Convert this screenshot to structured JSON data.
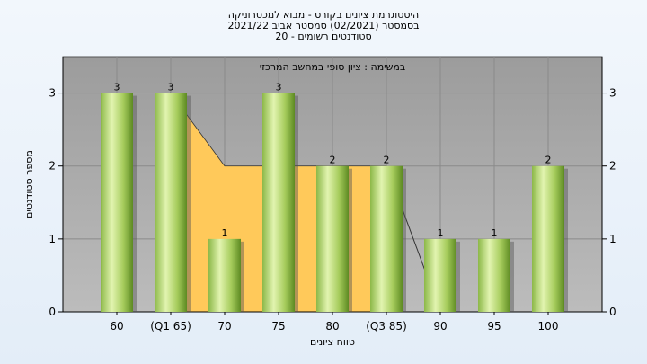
{
  "header": {
    "title_line1": "היסטוגרמת ציונים בקורס - מבוא למכטרוניקה",
    "title_line2": "בסמסטר  (02/2021)  סמסטר אביב 2021/22",
    "title_line3": "סטודנטים רשומים - 20"
  },
  "colors": {
    "plot_bg": "#a8a8a8",
    "bar_light": "#d4ec9a",
    "bar_dark": "#6e9a2a",
    "area_fill": "#ffc95a",
    "page_bg": "#e8f0f8"
  },
  "chart_data": {
    "type": "bar",
    "annotation": "במשימה : ציון סופי במחשב המרכזי",
    "xlabel": "טווח ציונים",
    "ylabel": "מספר סטודנטים",
    "categories": [
      "60",
      "(Q1 65)",
      "70",
      "75",
      "80",
      "(Q3 85)",
      "90",
      "95",
      "100"
    ],
    "values": [
      3,
      3,
      1,
      3,
      2,
      2,
      1,
      1,
      2
    ],
    "ylim": [
      0,
      3.5
    ],
    "yticks": [
      0,
      1,
      2,
      3
    ],
    "grid": true,
    "right_axis": true,
    "shaded_area": {
      "type": "area",
      "description_label": "",
      "x": [
        "(Q1 65)",
        "70",
        "75",
        "80",
        "(Q3 85)"
      ],
      "values": [
        3,
        2,
        2,
        2,
        2
      ]
    }
  }
}
